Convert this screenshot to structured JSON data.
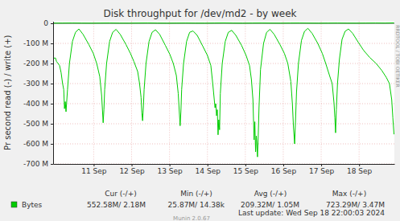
{
  "chart_data": {
    "type": "line",
    "title": "Disk throughput for /dev/md2 - by week",
    "y_label": "Pr second read (-) / write (+)",
    "series": [
      {
        "name": "Bytes",
        "color": "#00cc00",
        "x": [
          9.93,
          9.96,
          9.99,
          10.02,
          10.06,
          10.1,
          10.14,
          10.18,
          10.21,
          10.23,
          10.25,
          10.27,
          10.31,
          10.36,
          10.44,
          10.52,
          10.61,
          10.72,
          10.87,
          10.99,
          11.08,
          11.16,
          11.21,
          11.25,
          11.27,
          11.29,
          11.34,
          11.42,
          11.5,
          11.59,
          11.7,
          11.85,
          11.97,
          12.06,
          12.16,
          12.21,
          12.25,
          12.27,
          12.29,
          12.31,
          12.33,
          12.38,
          12.46,
          12.54,
          12.63,
          12.74,
          12.89,
          13.01,
          13.1,
          13.18,
          13.23,
          13.28,
          13.3,
          13.32,
          13.37,
          13.45,
          13.53,
          13.62,
          13.73,
          13.88,
          14.0,
          14.09,
          14.14,
          14.18,
          14.2,
          14.22,
          14.24,
          14.26,
          14.28,
          14.3,
          14.32,
          14.34,
          14.39,
          14.47,
          14.55,
          14.64,
          14.75,
          14.9,
          15.02,
          15.11,
          15.16,
          15.2,
          15.23,
          15.25,
          15.27,
          15.29,
          15.32,
          15.34,
          15.36,
          15.4,
          15.48,
          15.56,
          15.65,
          15.76,
          15.91,
          16.03,
          16.12,
          16.2,
          16.24,
          16.27,
          16.3,
          16.32,
          16.35,
          16.4,
          16.48,
          16.56,
          16.65,
          16.76,
          16.91,
          17.03,
          17.12,
          17.22,
          17.29,
          17.34,
          17.36,
          17.38,
          17.4,
          17.43,
          17.48,
          17.55,
          17.63,
          17.72,
          17.83,
          17.98,
          18.12,
          18.28,
          18.45,
          18.6,
          18.72,
          18.8,
          18.86,
          18.89,
          18.92
        ],
        "values": [
          -165,
          -175,
          -172,
          -190,
          -200,
          -210,
          -245,
          -300,
          -330,
          -425,
          -390,
          -440,
          -330,
          -200,
          -90,
          -45,
          -28,
          -55,
          -105,
          -150,
          -200,
          -265,
          -360,
          -495,
          -430,
          -330,
          -200,
          -90,
          -45,
          -30,
          -55,
          -105,
          -150,
          -190,
          -240,
          -300,
          -370,
          -445,
          -485,
          -420,
          -330,
          -200,
          -90,
          -45,
          -32,
          -55,
          -110,
          -155,
          -200,
          -260,
          -350,
          -510,
          -440,
          -330,
          -200,
          -90,
          -45,
          -38,
          -60,
          -115,
          -160,
          -210,
          -300,
          -380,
          -420,
          -400,
          -460,
          -430,
          -555,
          -480,
          -530,
          -350,
          -200,
          -90,
          -45,
          -35,
          -60,
          -110,
          -160,
          -210,
          -280,
          -380,
          -580,
          -490,
          -640,
          -560,
          -665,
          -560,
          -420,
          -230,
          -100,
          -45,
          -30,
          -55,
          -105,
          -150,
          -200,
          -290,
          -400,
          -520,
          -600,
          -500,
          -340,
          -200,
          -85,
          -40,
          -25,
          -50,
          -100,
          -150,
          -200,
          -260,
          -300,
          -400,
          -470,
          -545,
          -430,
          -300,
          -180,
          -80,
          -40,
          -28,
          -50,
          -95,
          -135,
          -170,
          -200,
          -235,
          -270,
          -300,
          -380,
          -470,
          -552.58
        ]
      },
      {
        "color": "#00cc00",
        "x": [
          9.93,
          10.18,
          10.43,
          10.68,
          10.93,
          11.18,
          11.43,
          11.68,
          11.93,
          12.18,
          12.43,
          12.68,
          12.93,
          13.18,
          13.43,
          13.68,
          13.93,
          14.18,
          14.43,
          14.68,
          14.93,
          15.18,
          15.43,
          15.68,
          15.93,
          16.18,
          16.43,
          16.68,
          16.93,
          17.18,
          17.43,
          17.68,
          17.93,
          18.18,
          18.43,
          18.68,
          18.92
        ],
        "values": [
          0.8,
          1.0,
          1.5,
          0.9,
          0.6,
          1.1,
          1.4,
          0.8,
          0.7,
          1.2,
          1.6,
          0.9,
          0.6,
          1.0,
          1.3,
          0.8,
          0.7,
          1.2,
          1.8,
          1.0,
          0.6,
          1.1,
          1.5,
          0.9,
          0.7,
          1.2,
          1.4,
          0.9,
          0.6,
          1.0,
          1.3,
          0.8,
          0.7,
          1.1,
          1.5,
          1.0,
          2.18
        ]
      }
    ],
    "xlim": [
      9.93,
      18.93
    ],
    "xticks": [
      {
        "value": 11,
        "label": "11 Sep"
      },
      {
        "value": 12,
        "label": "12 Sep"
      },
      {
        "value": 13,
        "label": "13 Sep"
      },
      {
        "value": 14,
        "label": "14 Sep"
      },
      {
        "value": 15,
        "label": "15 Sep"
      },
      {
        "value": 16,
        "label": "16 Sep"
      },
      {
        "value": 17,
        "label": "17 Sep"
      },
      {
        "value": 18,
        "label": "18 Sep"
      }
    ],
    "ylim": [
      -700,
      10
    ],
    "yticks": [
      0,
      {
        "value": -100,
        "label": "-100 M"
      },
      {
        "value": -200,
        "label": "-200 M"
      },
      {
        "value": -300,
        "label": "-300 M"
      },
      {
        "value": -400,
        "label": "-400 M"
      },
      {
        "value": -500,
        "label": "-500 M"
      },
      {
        "value": -600,
        "label": "-600 M"
      },
      {
        "value": -700,
        "label": "-700 M"
      }
    ],
    "grid": true,
    "stats": {
      "columns": [
        "Cur (-/+)",
        "Min (-/+)",
        "Avg (-/+)",
        "Max (-/+)"
      ],
      "values": [
        "552.58M/ 2.18M",
        "25.87M/ 14.38k",
        "209.32M/ 1.05M",
        "723.29M/ 3.47M"
      ]
    },
    "last_update": "Last update: Wed Sep 18 22:00:03 2024",
    "credit": "Munin 2.0.67",
    "watermark": "RRDTOOL / TOBI OETIKER"
  }
}
